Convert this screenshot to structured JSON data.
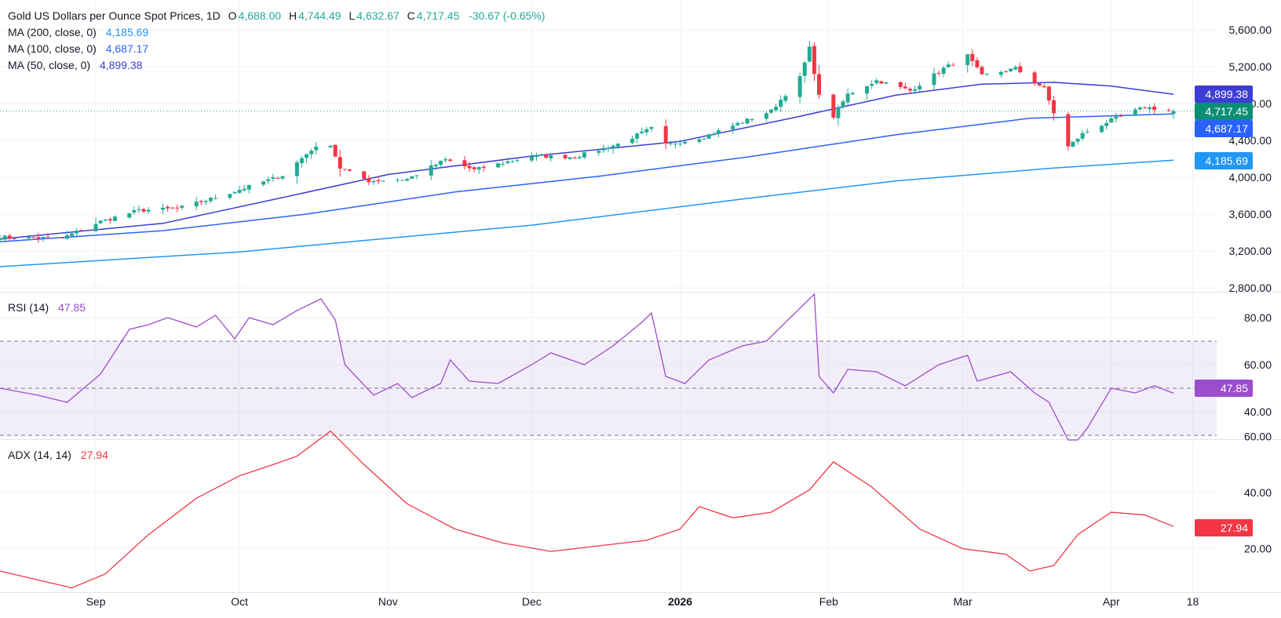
{
  "header": {
    "title": "Gold US Dollars per Ounce Spot Prices, 1D",
    "ohlc": [
      {
        "key": "O",
        "value": "4,688.00"
      },
      {
        "key": "H",
        "value": "4,744.49"
      },
      {
        "key": "L",
        "value": "4,632.67"
      },
      {
        "key": "C",
        "value": "4,717.45"
      }
    ],
    "change": "-30.67 (-0.65%)"
  },
  "legend": {
    "ma200": {
      "label": "MA (200, close, 0)",
      "value": "4,185.69"
    },
    "ma100": {
      "label": "MA (100, close, 0)",
      "value": "4,687.17"
    },
    "ma50": {
      "label": "MA (50, close, 0)",
      "value": "4,899.38"
    },
    "rsi": {
      "label": "RSI (14)",
      "value": "47.85"
    },
    "adx": {
      "label": "ADX (14, 14)",
      "value": "27.94"
    }
  },
  "badges": {
    "ma50": "4,899.38",
    "close": "4,717.45",
    "ma100": "4,687.17",
    "ma200": "4,185.69",
    "rsi": "47.85",
    "adx": "27.94"
  },
  "colors": {
    "up": "#22ab94",
    "down": "#f23645",
    "ma200": "#2196f3",
    "ma100": "#2962ff",
    "ma50": "#3d3dd6",
    "rsi": "#9c4dcc",
    "adx": "#f23645",
    "close_badge": "#0a8f74",
    "grid": "#f0f3fa"
  },
  "chart_data": [
    {
      "type": "candlestick",
      "title": "Gold US Dollars per Ounce Spot Prices, 1D",
      "ylim": [
        2800,
        5600
      ],
      "y_ticks": [
        "2,800.00",
        "3,200.00",
        "3,600.00",
        "4,000.00",
        "4,400.00",
        "4,800.00",
        "5,200.00",
        "5,600.00"
      ],
      "x_ticks": [
        "Sep",
        "Oct",
        "Nov",
        "Dec",
        "2026",
        "Feb",
        "Mar",
        "Apr",
        "18"
      ],
      "x_range": [
        "2025-08-12",
        "2026-04-23"
      ],
      "last_candle": {
        "date": "2026-04-14",
        "open": 4688.0,
        "high": 4744.49,
        "low": 4632.67,
        "close": 4717.45
      },
      "anchors": [
        [
          "2025-08-12",
          3350
        ],
        [
          "2025-08-25",
          3340
        ],
        [
          "2025-09-02",
          3520
        ],
        [
          "2025-09-10",
          3640
        ],
        [
          "2025-09-18",
          3660
        ],
        [
          "2025-09-26",
          3780
        ],
        [
          "2025-10-03",
          3900
        ],
        [
          "2025-10-10",
          4020
        ],
        [
          "2025-10-16",
          4300
        ],
        [
          "2025-10-20",
          4360
        ],
        [
          "2025-10-22",
          4100
        ],
        [
          "2025-10-28",
          3960
        ],
        [
          "2025-11-05",
          3980
        ],
        [
          "2025-11-13",
          4190
        ],
        [
          "2025-11-19",
          4080
        ],
        [
          "2025-12-01",
          4230
        ],
        [
          "2025-12-10",
          4220
        ],
        [
          "2025-12-19",
          4360
        ],
        [
          "2025-12-26",
          4530
        ],
        [
          "2025-12-29",
          4350
        ],
        [
          "2026-01-06",
          4440
        ],
        [
          "2026-01-14",
          4600
        ],
        [
          "2026-01-20",
          4720
        ],
        [
          "2026-01-26",
          5080
        ],
        [
          "2026-01-28",
          5400
        ],
        [
          "2026-01-30",
          4880
        ],
        [
          "2026-02-02",
          4660
        ],
        [
          "2026-02-05",
          4900
        ],
        [
          "2026-02-11",
          5050
        ],
        [
          "2026-02-18",
          4940
        ],
        [
          "2026-02-25",
          5180
        ],
        [
          "2026-03-02",
          5320
        ],
        [
          "2026-03-05",
          5100
        ],
        [
          "2026-03-12",
          5180
        ],
        [
          "2026-03-18",
          4960
        ],
        [
          "2026-03-20",
          4700
        ],
        [
          "2026-03-23",
          4330
        ],
        [
          "2026-03-26",
          4470
        ],
        [
          "2026-04-01",
          4620
        ],
        [
          "2026-04-08",
          4760
        ],
        [
          "2026-04-14",
          4717.45
        ]
      ],
      "series": [
        {
          "name": "MA (200, close, 0)",
          "points": [
            [
              "2025-08-12",
              3030
            ],
            [
              "2025-10-01",
              3190
            ],
            [
              "2025-12-01",
              3480
            ],
            [
              "2026-01-15",
              3770
            ],
            [
              "2026-02-15",
              3960
            ],
            [
              "2026-03-20",
              4100
            ],
            [
              "2026-04-14",
              4185.69
            ]
          ]
        },
        {
          "name": "MA (100, close, 0)",
          "points": [
            [
              "2025-08-12",
              3300
            ],
            [
              "2025-09-15",
              3420
            ],
            [
              "2025-10-15",
              3600
            ],
            [
              "2025-11-15",
              3840
            ],
            [
              "2025-12-15",
              4010
            ],
            [
              "2026-01-15",
              4220
            ],
            [
              "2026-02-15",
              4460
            ],
            [
              "2026-03-15",
              4640
            ],
            [
              "2026-04-14",
              4687.17
            ]
          ]
        },
        {
          "name": "MA (50, close, 0)",
          "points": [
            [
              "2025-08-12",
              3330
            ],
            [
              "2025-09-15",
              3500
            ],
            [
              "2025-10-10",
              3780
            ],
            [
              "2025-11-01",
              4030
            ],
            [
              "2025-12-01",
              4230
            ],
            [
              "2026-01-01",
              4390
            ],
            [
              "2026-01-25",
              4650
            ],
            [
              "2026-02-15",
              4890
            ],
            [
              "2026-03-05",
              5010
            ],
            [
              "2026-03-20",
              5030
            ],
            [
              "2026-04-01",
              4990
            ],
            [
              "2026-04-14",
              4899.38
            ]
          ]
        }
      ]
    },
    {
      "type": "line",
      "title": "RSI (14)",
      "ylim": [
        20,
        100
      ],
      "y_ticks": [
        "40.00",
        "60.00",
        "80.00"
      ],
      "levels": [
        30,
        50,
        70
      ],
      "series": [
        {
          "name": "RSI (14)",
          "points": [
            [
              "2025-08-12",
              50
            ],
            [
              "2025-08-20",
              47
            ],
            [
              "2025-08-26",
              44
            ],
            [
              "2025-09-02",
              56
            ],
            [
              "2025-09-08",
              75
            ],
            [
              "2025-09-12",
              77
            ],
            [
              "2025-09-16",
              80
            ],
            [
              "2025-09-22",
              76
            ],
            [
              "2025-09-26",
              81
            ],
            [
              "2025-09-30",
              71
            ],
            [
              "2025-10-03",
              80
            ],
            [
              "2025-10-08",
              77
            ],
            [
              "2025-10-13",
              83
            ],
            [
              "2025-10-16",
              86
            ],
            [
              "2025-10-18",
              88
            ],
            [
              "2025-10-21",
              79
            ],
            [
              "2025-10-23",
              60
            ],
            [
              "2025-10-29",
              47
            ],
            [
              "2025-11-03",
              52
            ],
            [
              "2025-11-06",
              46
            ],
            [
              "2025-11-12",
              52
            ],
            [
              "2025-11-14",
              62
            ],
            [
              "2025-11-18",
              53
            ],
            [
              "2025-11-24",
              52
            ],
            [
              "2025-12-01",
              60
            ],
            [
              "2025-12-05",
              65
            ],
            [
              "2025-12-12",
              60
            ],
            [
              "2025-12-18",
              68
            ],
            [
              "2025-12-24",
              78
            ],
            [
              "2025-12-26",
              82
            ],
            [
              "2025-12-29",
              55
            ],
            [
              "2026-01-02",
              52
            ],
            [
              "2026-01-07",
              62
            ],
            [
              "2026-01-14",
              68
            ],
            [
              "2026-01-19",
              70
            ],
            [
              "2026-01-22",
              76
            ],
            [
              "2026-01-27",
              86
            ],
            [
              "2026-01-29",
              90
            ],
            [
              "2026-01-30",
              55
            ],
            [
              "2026-02-02",
              48
            ],
            [
              "2026-02-05",
              58
            ],
            [
              "2026-02-11",
              57
            ],
            [
              "2026-02-17",
              51
            ],
            [
              "2026-02-24",
              60
            ],
            [
              "2026-03-02",
              64
            ],
            [
              "2026-03-04",
              53
            ],
            [
              "2026-03-11",
              57
            ],
            [
              "2026-03-16",
              48
            ],
            [
              "2026-03-19",
              44
            ],
            [
              "2026-03-23",
              28
            ],
            [
              "2026-03-25",
              28
            ],
            [
              "2026-03-27",
              33
            ],
            [
              "2026-04-01",
              50
            ],
            [
              "2026-04-06",
              48
            ],
            [
              "2026-04-10",
              51
            ],
            [
              "2026-04-14",
              47.85
            ]
          ]
        }
      ]
    },
    {
      "type": "line",
      "title": "ADX (14, 14)",
      "ylim": [
        0,
        70
      ],
      "y_ticks": [
        "20.00",
        "40.00",
        "60.00"
      ],
      "series": [
        {
          "name": "ADX (14, 14)",
          "points": [
            [
              "2025-08-12",
              12
            ],
            [
              "2025-08-27",
              6
            ],
            [
              "2025-09-03",
              11
            ],
            [
              "2025-09-12",
              25
            ],
            [
              "2025-09-22",
              38
            ],
            [
              "2025-10-01",
              46
            ],
            [
              "2025-10-08",
              50
            ],
            [
              "2025-10-13",
              53
            ],
            [
              "2025-10-20",
              62
            ],
            [
              "2025-10-27",
              50
            ],
            [
              "2025-11-05",
              36
            ],
            [
              "2025-11-15",
              27
            ],
            [
              "2025-11-25",
              22
            ],
            [
              "2025-12-05",
              19
            ],
            [
              "2025-12-15",
              21
            ],
            [
              "2025-12-25",
              23
            ],
            [
              "2026-01-01",
              27
            ],
            [
              "2026-01-05",
              35
            ],
            [
              "2026-01-12",
              31
            ],
            [
              "2026-01-20",
              33
            ],
            [
              "2026-01-28",
              41
            ],
            [
              "2026-02-02",
              51
            ],
            [
              "2026-02-10",
              42
            ],
            [
              "2026-02-20",
              27
            ],
            [
              "2026-03-01",
              20
            ],
            [
              "2026-03-10",
              18
            ],
            [
              "2026-03-15",
              12
            ],
            [
              "2026-03-20",
              14
            ],
            [
              "2026-03-25",
              25
            ],
            [
              "2026-04-01",
              33
            ],
            [
              "2026-04-08",
              32
            ],
            [
              "2026-04-14",
              27.94
            ]
          ]
        }
      ]
    }
  ]
}
